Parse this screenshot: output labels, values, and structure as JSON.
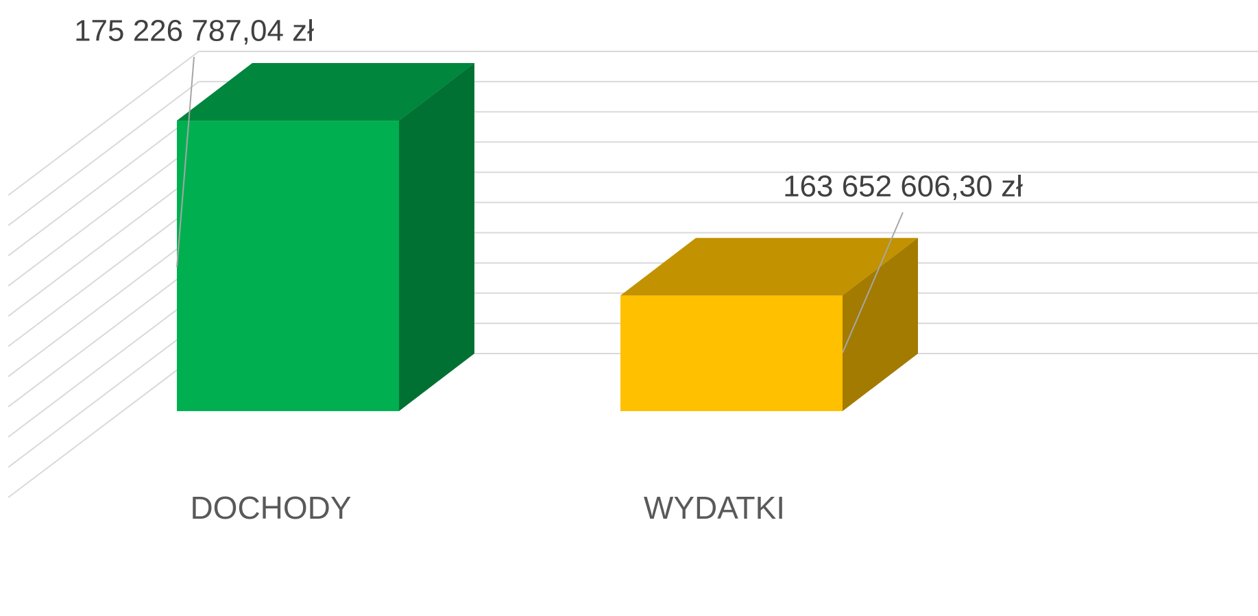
{
  "chart_data": {
    "type": "bar",
    "categories": [
      "DOCHODY",
      "WYDATKI"
    ],
    "values": [
      175226787.04,
      163652606.3
    ],
    "value_labels": [
      "175 226 787,04 zł",
      "163 652 606,30 zł"
    ],
    "colors": [
      "#00b050",
      "#ffc000"
    ],
    "ylim": [
      156000000,
      176000000
    ],
    "yticks": [
      156000000,
      158000000,
      160000000,
      162000000,
      164000000,
      166000000,
      168000000,
      170000000,
      172000000,
      174000000,
      176000000
    ],
    "grid": true
  }
}
